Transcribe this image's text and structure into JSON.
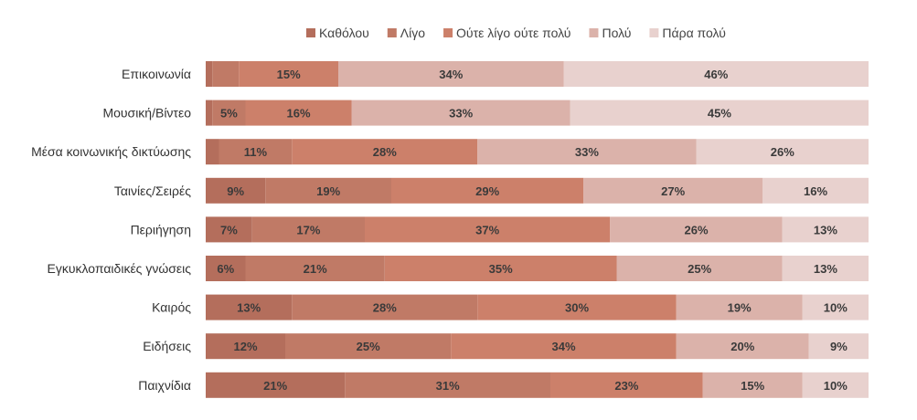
{
  "chart_data": {
    "type": "bar",
    "orientation": "horizontal",
    "stacked": true,
    "value_unit": "%",
    "xlim": [
      0,
      100
    ],
    "legend_position": "top",
    "categories": [
      "Επικοινωνία",
      "Μουσική/Βίντεο",
      "Μέσα κοινωνικής δικτύωσης",
      "Ταινίες/Σειρές",
      "Περιήγηση",
      "Εγκυκλοπαιδικές γνώσεις",
      "Καιρός",
      "Ειδήσεις",
      "Παιχνίδια"
    ],
    "series": [
      {
        "name": "Καθόλου",
        "color": "#b46e5c",
        "values": [
          1,
          1,
          2,
          9,
          7,
          6,
          13,
          12,
          21
        ]
      },
      {
        "name": "Λίγο",
        "color": "#c07a66",
        "values": [
          4,
          5,
          11,
          19,
          17,
          21,
          28,
          25,
          31
        ]
      },
      {
        "name": "Ούτε λίγο ούτε πολύ",
        "color": "#cc806a",
        "values": [
          15,
          16,
          28,
          29,
          37,
          35,
          30,
          34,
          23
        ]
      },
      {
        "name": "Πολύ",
        "color": "#dbb2aa",
        "values": [
          34,
          33,
          33,
          27,
          26,
          25,
          19,
          20,
          15
        ]
      },
      {
        "name": "Πάρα πολύ",
        "color": "#e8d1ce",
        "values": [
          46,
          45,
          26,
          16,
          13,
          13,
          10,
          9,
          10
        ]
      }
    ],
    "data_labels": [
      [
        "",
        "",
        "15%",
        "34%",
        "46%"
      ],
      [
        "",
        "5%",
        "16%",
        "33%",
        "45%"
      ],
      [
        "",
        "11%",
        "28%",
        "33%",
        "26%"
      ],
      [
        "9%",
        "19%",
        "29%",
        "27%",
        "16%"
      ],
      [
        "7%",
        "17%",
        "37%",
        "26%",
        "13%"
      ],
      [
        "6%",
        "21%",
        "35%",
        "25%",
        "13%"
      ],
      [
        "13%",
        "28%",
        "30%",
        "19%",
        "10%"
      ],
      [
        "12%",
        "25%",
        "34%",
        "20%",
        "9%"
      ],
      [
        "21%",
        "31%",
        "23%",
        "15%",
        "10%"
      ]
    ]
  }
}
